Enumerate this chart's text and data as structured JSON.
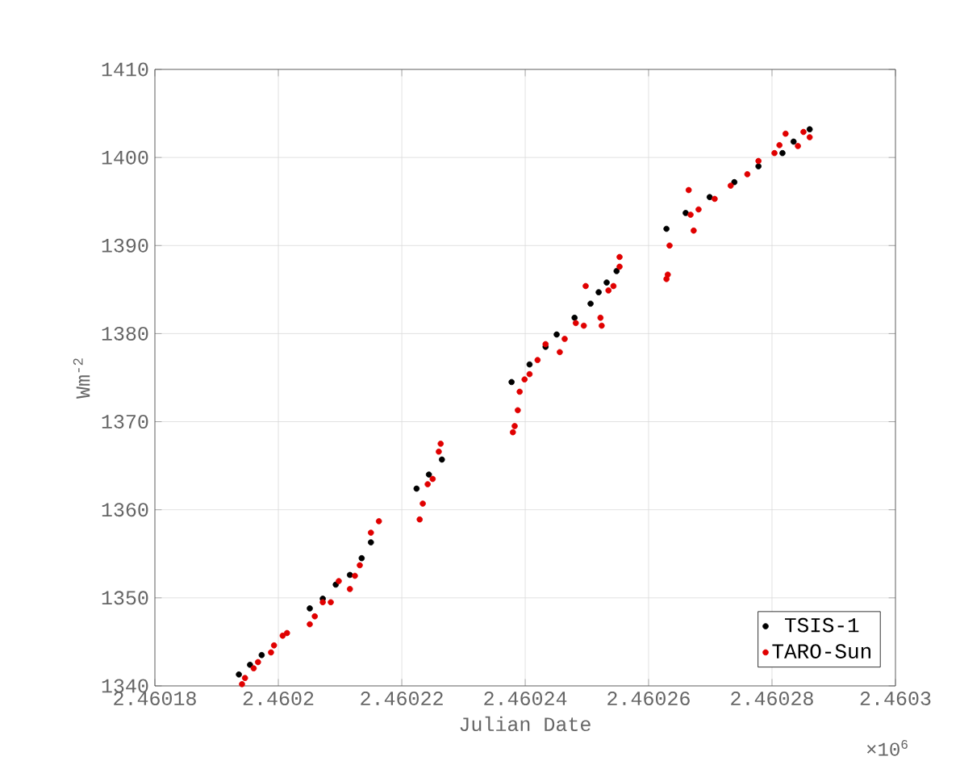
{
  "chart_data": {
    "type": "scatter",
    "xlabel": "Julian Date",
    "ylabel": "Wm$^{-2}$",
    "annotations": [
      "×10$^{6}$"
    ],
    "xlim": [
      2.46018,
      2.4603
    ],
    "ylim": [
      1340,
      1410
    ],
    "xticks": [
      2.46018,
      2.4602,
      2.46022,
      2.46024,
      2.46026,
      2.46028,
      2.4603
    ],
    "yticks": [
      1340,
      1350,
      1360,
      1370,
      1380,
      1390,
      1400,
      1410
    ],
    "grid": true,
    "legend": "bottom right",
    "series": [
      {
        "name": "TSIS-1",
        "color": "#000000",
        "x": [
          2.4601936,
          2.4601954,
          2.4601973,
          2.4602051,
          2.4602072,
          2.4602093,
          2.4602116,
          2.4602135,
          2.460215,
          2.4602224,
          2.4602244,
          2.4602265,
          2.4602378,
          2.4602407,
          2.4602433,
          2.4602451,
          2.460248,
          2.4602506,
          2.4602519,
          2.4602532,
          2.4602548,
          2.4602629,
          2.460266,
          2.4602699,
          2.4602739,
          2.4602778,
          2.4602817,
          2.4602835,
          2.4602861
        ],
        "values": [
          1341.3,
          1342.4,
          1343.5,
          1348.8,
          1349.9,
          1351.5,
          1352.6,
          1354.5,
          1356.3,
          1362.4,
          1364.0,
          1365.7,
          1374.5,
          1376.5,
          1378.5,
          1379.9,
          1381.8,
          1383.4,
          1384.7,
          1385.8,
          1387.1,
          1391.9,
          1393.7,
          1395.5,
          1397.2,
          1399.0,
          1400.5,
          1401.8,
          1403.2
        ]
      },
      {
        "name": "TARO-Sun",
        "color": "#e00000",
        "x": [
          2.4601941,
          2.4601946,
          2.460196,
          2.4601967,
          2.4601988,
          2.4601993,
          2.4602007,
          2.4602014,
          2.4602051,
          2.4602059,
          2.4602072,
          2.4602085,
          2.4602098,
          2.4602116,
          2.4602124,
          2.4602132,
          2.460215,
          2.4602163,
          2.4602229,
          2.4602234,
          2.4602242,
          2.460225,
          2.460226,
          2.4602263,
          2.460238,
          2.4602383,
          2.4602388,
          2.4602391,
          2.4602399,
          2.4602407,
          2.460242,
          2.4602433,
          2.4602456,
          2.4602464,
          2.4602482,
          2.4602495,
          2.4602522,
          2.4602524,
          2.4602498,
          2.4602535,
          2.4602543,
          2.4602553,
          2.4602553,
          2.4602634,
          2.4602631,
          2.4602629,
          2.4602665,
          2.4602668,
          2.4602673,
          2.4602681,
          2.4602707,
          2.4602733,
          2.460276,
          2.4602778,
          2.4602804,
          2.4602812,
          2.4602822,
          2.4602842,
          2.4602851,
          2.4602861
        ],
        "values": [
          1340.2,
          1340.9,
          1342.0,
          1342.7,
          1343.8,
          1344.6,
          1345.7,
          1346.0,
          1347.0,
          1347.9,
          1349.5,
          1349.5,
          1351.9,
          1351.0,
          1352.5,
          1353.7,
          1357.4,
          1358.7,
          1358.9,
          1360.7,
          1362.9,
          1363.5,
          1366.6,
          1367.5,
          1368.8,
          1369.5,
          1371.3,
          1373.4,
          1374.8,
          1375.4,
          1377.0,
          1378.8,
          1377.9,
          1379.4,
          1381.2,
          1380.9,
          1381.8,
          1380.9,
          1385.4,
          1384.9,
          1385.4,
          1387.6,
          1388.7,
          1390.0,
          1386.7,
          1386.2,
          1396.3,
          1393.5,
          1391.7,
          1394.1,
          1395.3,
          1396.8,
          1398.1,
          1399.6,
          1400.5,
          1401.4,
          1402.7,
          1401.3,
          1402.9,
          1402.3
        ]
      }
    ]
  }
}
